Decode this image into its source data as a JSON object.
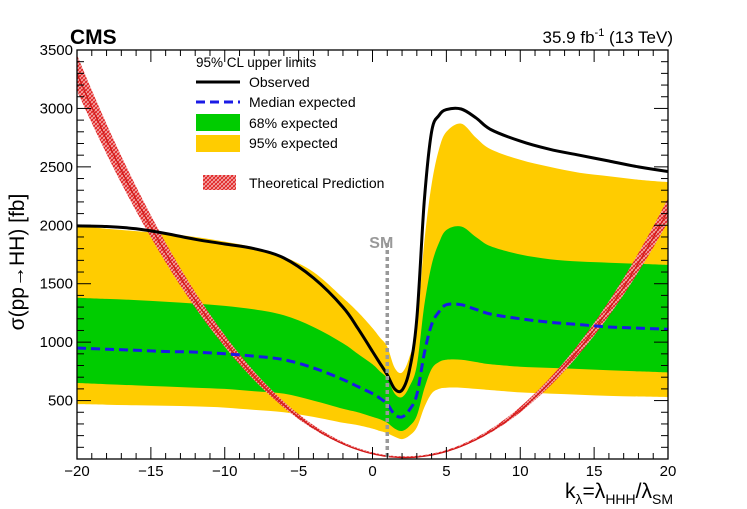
{
  "chart_data": {
    "type": "line",
    "experiment": "CMS",
    "lumi": {
      "prefix": "35.9 fb",
      "exponent": "-1",
      "suffix": " (13 TeV)"
    },
    "xlabel": {
      "base": "k",
      "sub1": "λ",
      "mid": "=λ",
      "sub2": "HHH",
      "slash": "/λ",
      "sub3": "SM"
    },
    "ylabel": "σ(pp→HH) [fb]",
    "xlim": [
      -20,
      20
    ],
    "ylim": [
      0,
      3500
    ],
    "x_ticks": [
      -20,
      -15,
      -10,
      -5,
      0,
      5,
      10,
      15,
      20
    ],
    "x_tick_labels": [
      "−20",
      "−15",
      "−10",
      "−5",
      "0",
      "5",
      "10",
      "15",
      "20"
    ],
    "y_ticks": [
      500,
      1000,
      1500,
      2000,
      2500,
      3000,
      3500
    ],
    "y_tick_labels": [
      "500",
      "1000",
      "1500",
      "2000",
      "2500",
      "3000",
      "3500"
    ],
    "legend_title": "95% CL upper limits",
    "legend": [
      {
        "name": "Observed",
        "color": "#000000",
        "style": "line"
      },
      {
        "name": "Median expected",
        "color": "#1a1ae6",
        "style": "dashed"
      },
      {
        "name": "68% expected",
        "color": "#00cc00",
        "style": "box"
      },
      {
        "name": "95% expected",
        "color": "#ffcc00",
        "style": "box"
      },
      {
        "name": "Theoretical Prediction",
        "color": "#e02020",
        "style": "hatched"
      }
    ],
    "sm_marker": {
      "x": 1,
      "label": "SM",
      "color": "#999999"
    },
    "x": [
      -20,
      -18,
      -16,
      -14,
      -12,
      -10,
      -8,
      -6,
      -4,
      -2,
      -1,
      0,
      0.5,
      1,
      1.5,
      2,
      2.5,
      3,
      3.5,
      4,
      4.5,
      5,
      6,
      7,
      8,
      10,
      12,
      14,
      16,
      18,
      20
    ],
    "series": [
      {
        "name": "Observed",
        "values": [
          1995,
          1990,
          1970,
          1930,
          1880,
          1840,
          1800,
          1720,
          1550,
          1300,
          1120,
          920,
          820,
          720,
          600,
          590,
          760,
          1200,
          2200,
          2800,
          2940,
          2990,
          2995,
          2920,
          2820,
          2720,
          2650,
          2600,
          2550,
          2500,
          2460
        ]
      },
      {
        "name": "Median expected",
        "values": [
          950,
          940,
          930,
          920,
          915,
          900,
          880,
          850,
          780,
          680,
          620,
          560,
          520,
          470,
          380,
          360,
          420,
          550,
          900,
          1150,
          1260,
          1320,
          1320,
          1280,
          1240,
          1200,
          1170,
          1150,
          1130,
          1120,
          1110
        ]
      },
      {
        "name": "68% low",
        "values": [
          650,
          640,
          630,
          620,
          610,
          600,
          580,
          560,
          500,
          430,
          400,
          360,
          340,
          310,
          260,
          240,
          280,
          370,
          600,
          770,
          830,
          850,
          850,
          830,
          810,
          790,
          780,
          770,
          760,
          750,
          740
        ]
      },
      {
        "name": "68% high",
        "values": [
          1380,
          1370,
          1360,
          1345,
          1330,
          1310,
          1280,
          1230,
          1130,
          990,
          900,
          810,
          750,
          690,
          560,
          530,
          620,
          800,
          1310,
          1660,
          1850,
          1960,
          1990,
          1900,
          1820,
          1750,
          1710,
          1690,
          1680,
          1670,
          1660
        ]
      },
      {
        "name": "95% low",
        "values": [
          470,
          465,
          460,
          455,
          450,
          440,
          420,
          400,
          360,
          310,
          290,
          260,
          240,
          220,
          190,
          170,
          200,
          270,
          440,
          560,
          600,
          610,
          610,
          600,
          590,
          570,
          560,
          550,
          540,
          535,
          530
        ]
      },
      {
        "name": "95% high",
        "values": [
          2000,
          1970,
          1950,
          1930,
          1900,
          1860,
          1810,
          1730,
          1600,
          1380,
          1260,
          1120,
          1040,
          960,
          780,
          740,
          870,
          1130,
          1850,
          2350,
          2650,
          2800,
          2870,
          2750,
          2650,
          2560,
          2500,
          2450,
          2420,
          2390,
          2370
        ]
      }
    ],
    "theory": {
      "name": "Theoretical Prediction",
      "description": "parabola",
      "min_x": 2.2,
      "min_y": 12,
      "coef": 6.67
    }
  }
}
